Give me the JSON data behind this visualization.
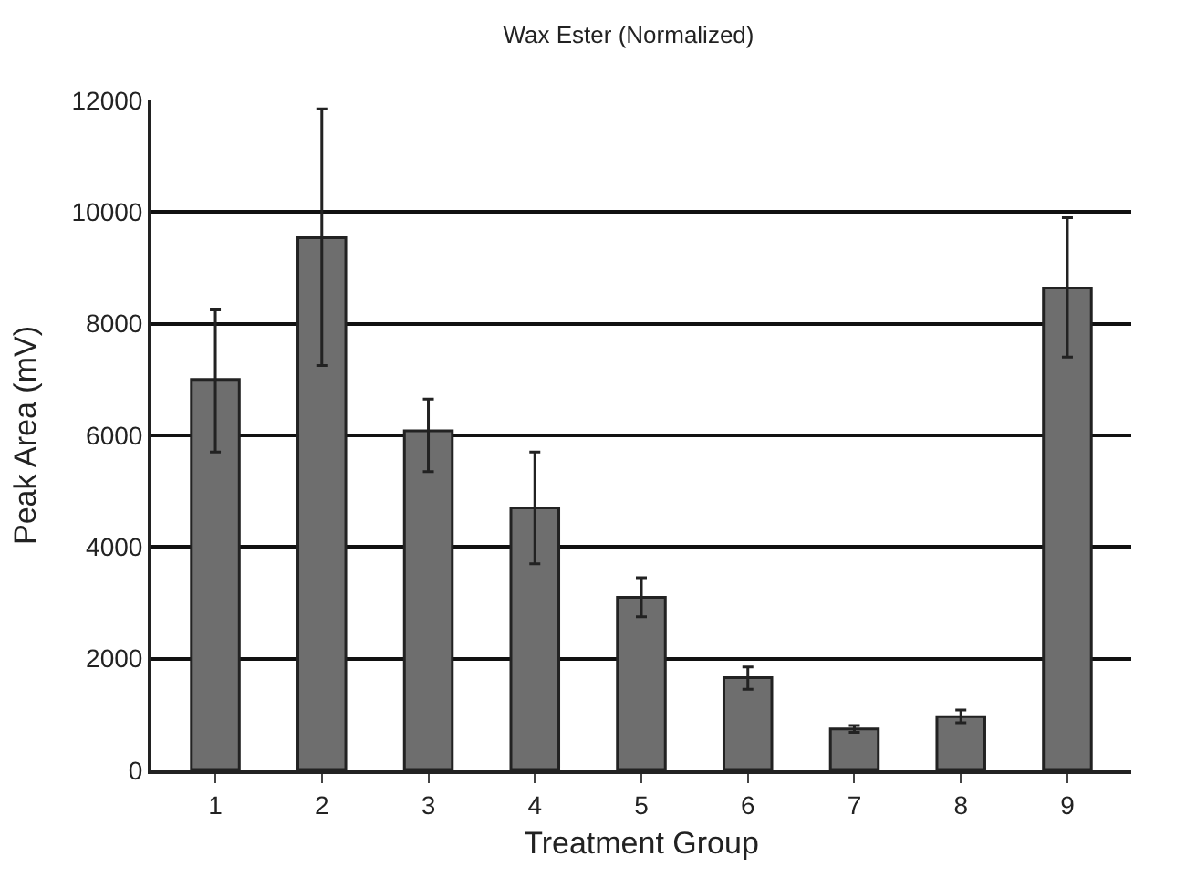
{
  "chart_data": {
    "type": "bar",
    "title": "Wax Ester (Normalized)",
    "xlabel": "Treatment Group",
    "ylabel": "Peak Area (mV)",
    "categories": [
      "1",
      "2",
      "3",
      "4",
      "5",
      "6",
      "7",
      "8",
      "9"
    ],
    "values": [
      7000,
      9540,
      6080,
      4700,
      3100,
      1660,
      740,
      960,
      8640
    ],
    "errors": [
      [
        5700,
        8250
      ],
      [
        7250,
        11850
      ],
      [
        5350,
        6650
      ],
      [
        3700,
        5700
      ],
      [
        2750,
        3450
      ],
      [
        1450,
        1850
      ],
      [
        680,
        800
      ],
      [
        850,
        1080
      ],
      [
        7400,
        9900
      ]
    ],
    "color": "#6e6e6e",
    "ylim": [
      0,
      12000
    ],
    "yticks": [
      0,
      2000,
      4000,
      6000,
      8000,
      10000,
      12000
    ],
    "grid": "y"
  }
}
